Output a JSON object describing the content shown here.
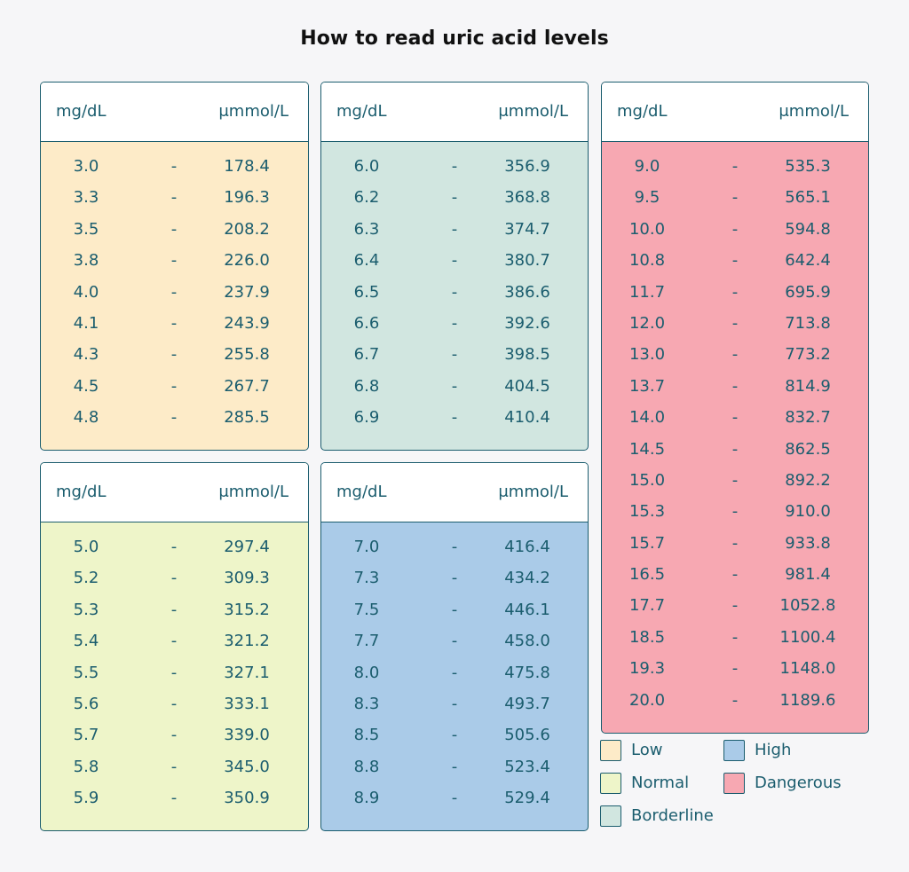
{
  "chart_data": {
    "type": "table",
    "title": "How to read uric acid levels",
    "columns": [
      "mg/dL",
      "μmmol/L"
    ],
    "separator": "-",
    "panels": [
      {
        "category": "Low",
        "color": "#fdebc8",
        "rows": [
          [
            "3.0",
            "178.4"
          ],
          [
            "3.3",
            "196.3"
          ],
          [
            "3.5",
            "208.2"
          ],
          [
            "3.8",
            "226.0"
          ],
          [
            "4.0",
            "237.9"
          ],
          [
            "4.1",
            "243.9"
          ],
          [
            "4.3",
            "255.8"
          ],
          [
            "4.5",
            "267.7"
          ],
          [
            "4.8",
            "285.5"
          ]
        ]
      },
      {
        "category": "Borderline",
        "color": "#d1e6e0",
        "rows": [
          [
            "6.0",
            "356.9"
          ],
          [
            "6.2",
            "368.8"
          ],
          [
            "6.3",
            "374.7"
          ],
          [
            "6.4",
            "380.7"
          ],
          [
            "6.5",
            "386.6"
          ],
          [
            "6.6",
            "392.6"
          ],
          [
            "6.7",
            "398.5"
          ],
          [
            "6.8",
            "404.5"
          ],
          [
            "6.9",
            "410.4"
          ]
        ]
      },
      {
        "category": "Dangerous",
        "color": "#f7a8b2",
        "rows": [
          [
            "9.0",
            "535.3"
          ],
          [
            "9.5",
            "565.1"
          ],
          [
            "10.0",
            "594.8"
          ],
          [
            "10.8",
            "642.4"
          ],
          [
            "11.7",
            "695.9"
          ],
          [
            "12.0",
            "713.8"
          ],
          [
            "13.0",
            "773.2"
          ],
          [
            "13.7",
            "814.9"
          ],
          [
            "14.0",
            "832.7"
          ],
          [
            "14.5",
            "862.5"
          ],
          [
            "15.0",
            "892.2"
          ],
          [
            "15.3",
            "910.0"
          ],
          [
            "15.7",
            "933.8"
          ],
          [
            "16.5",
            "981.4"
          ],
          [
            "17.7",
            "1052.8"
          ],
          [
            "18.5",
            "1100.4"
          ],
          [
            "19.3",
            "1148.0"
          ],
          [
            "20.0",
            "1189.6"
          ]
        ]
      },
      {
        "category": "Normal",
        "color": "#eef5c9",
        "rows": [
          [
            "5.0",
            "297.4"
          ],
          [
            "5.2",
            "309.3"
          ],
          [
            "5.3",
            "315.2"
          ],
          [
            "5.4",
            "321.2"
          ],
          [
            "5.5",
            "327.1"
          ],
          [
            "5.6",
            "333.1"
          ],
          [
            "5.7",
            "339.0"
          ],
          [
            "5.8",
            "345.0"
          ],
          [
            "5.9",
            "350.9"
          ]
        ]
      },
      {
        "category": "High",
        "color": "#aacbe8",
        "rows": [
          [
            "7.0",
            "416.4"
          ],
          [
            "7.3",
            "434.2"
          ],
          [
            "7.5",
            "446.1"
          ],
          [
            "7.7",
            "458.0"
          ],
          [
            "8.0",
            "475.8"
          ],
          [
            "8.3",
            "493.7"
          ],
          [
            "8.5",
            "505.6"
          ],
          [
            "8.8",
            "523.4"
          ],
          [
            "8.9",
            "529.4"
          ]
        ]
      }
    ],
    "legend": [
      {
        "label": "Low",
        "color": "#fdebc8"
      },
      {
        "label": "High",
        "color": "#aacbe8"
      },
      {
        "label": "Normal",
        "color": "#eef5c9"
      },
      {
        "label": "Dangerous",
        "color": "#f7a8b2"
      },
      {
        "label": "Borderline",
        "color": "#d1e6e0"
      }
    ]
  }
}
